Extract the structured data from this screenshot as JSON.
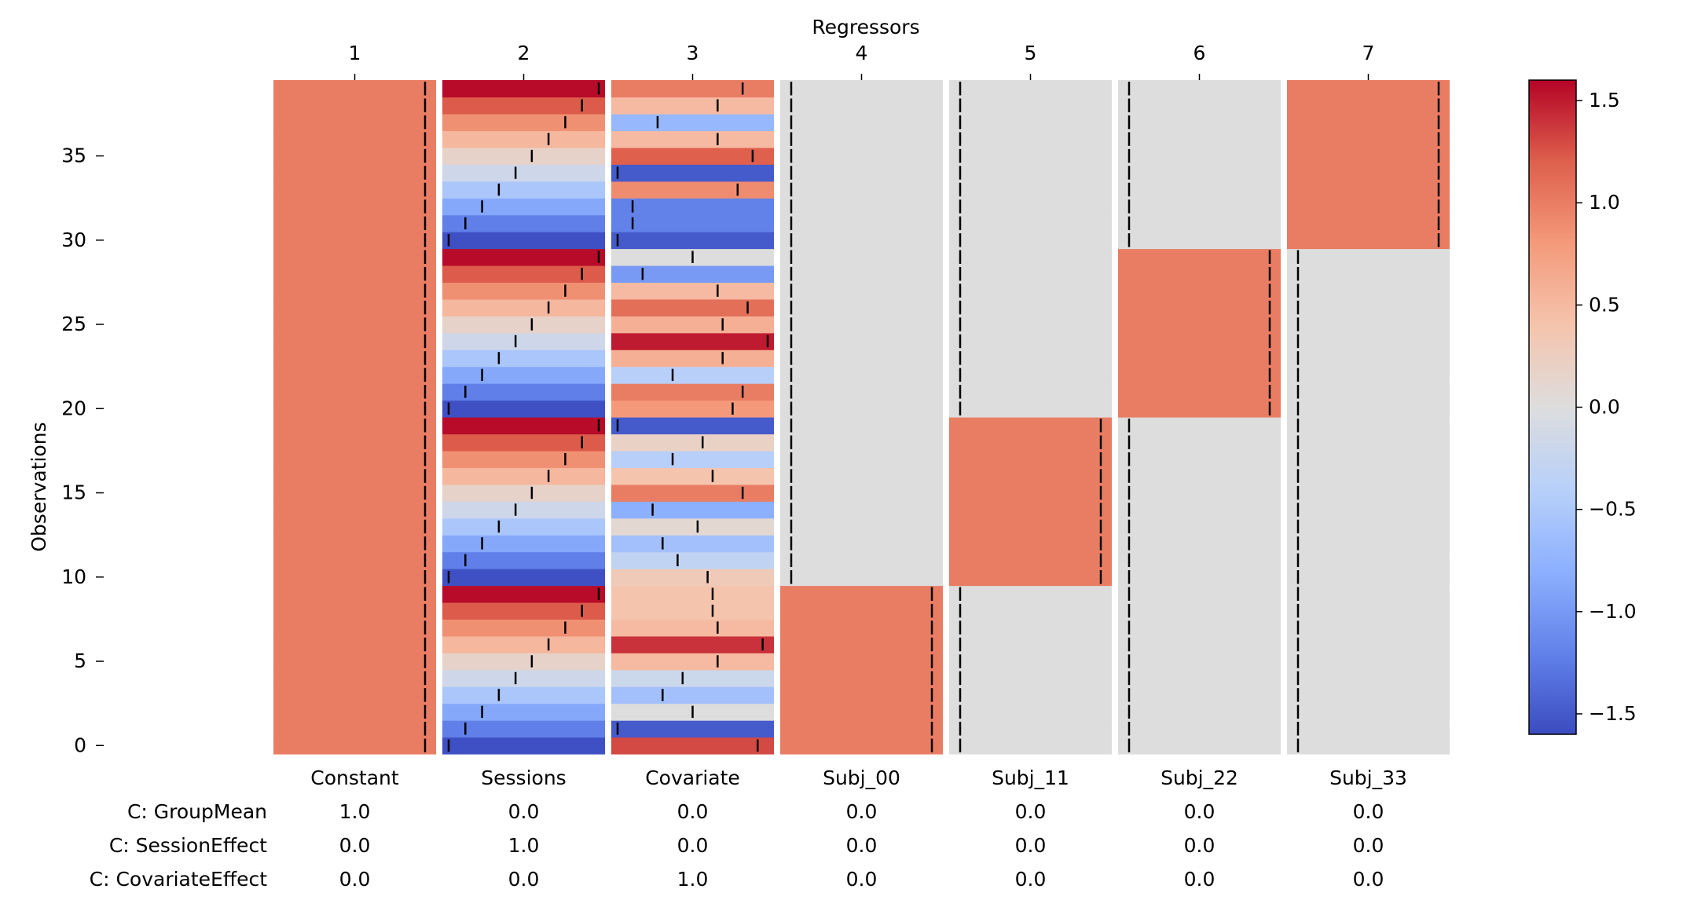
{
  "chart_data": {
    "type": "heatmap",
    "title": "Regressors",
    "ylabel": "Observations",
    "colormap": "coolwarm",
    "vmin": -1.6,
    "vmax": 1.6,
    "n_observations": 40,
    "regressor_numbers": [
      "1",
      "2",
      "3",
      "4",
      "5",
      "6",
      "7"
    ],
    "regressor_names": [
      "Constant",
      "Sessions",
      "Covariate",
      "Subj_00",
      "Subj_11",
      "Subj_22",
      "Subj_33"
    ],
    "y_ticks": [
      {
        "value": 0,
        "label": "0"
      },
      {
        "value": 5,
        "label": "5"
      },
      {
        "value": 10,
        "label": "10"
      },
      {
        "value": 15,
        "label": "15"
      },
      {
        "value": 20,
        "label": "20"
      },
      {
        "value": 25,
        "label": "25"
      },
      {
        "value": 30,
        "label": "30"
      },
      {
        "value": 35,
        "label": "35"
      }
    ],
    "colorbar_ticks": [
      {
        "value": 1.5,
        "label": "1.5"
      },
      {
        "value": 1.0,
        "label": "1.0"
      },
      {
        "value": 0.5,
        "label": "0.5"
      },
      {
        "value": 0.0,
        "label": "0.0"
      },
      {
        "value": -0.5,
        "label": "−0.5"
      },
      {
        "value": -1.0,
        "label": "−1.0"
      },
      {
        "value": -1.5,
        "label": "−1.5"
      }
    ],
    "columns": [
      {
        "name": "Constant",
        "values": [
          1,
          1,
          1,
          1,
          1,
          1,
          1,
          1,
          1,
          1,
          1,
          1,
          1,
          1,
          1,
          1,
          1,
          1,
          1,
          1,
          1,
          1,
          1,
          1,
          1,
          1,
          1,
          1,
          1,
          1,
          1,
          1,
          1,
          1,
          1,
          1,
          1,
          1,
          1,
          1
        ]
      },
      {
        "name": "Sessions",
        "values": [
          -1.57,
          -1.22,
          -0.87,
          -0.52,
          -0.17,
          0.17,
          0.52,
          0.87,
          1.22,
          1.57,
          -1.57,
          -1.22,
          -0.87,
          -0.52,
          -0.17,
          0.17,
          0.52,
          0.87,
          1.22,
          1.57,
          -1.57,
          -1.22,
          -0.87,
          -0.52,
          -0.17,
          0.17,
          0.52,
          0.87,
          1.22,
          1.57,
          -1.57,
          -1.22,
          -0.87,
          -0.52,
          -0.17,
          0.17,
          0.52,
          0.87,
          1.22,
          1.57
        ]
      },
      {
        "name": "Covariate",
        "values": [
          1.3,
          -1.5,
          0.0,
          -0.6,
          -0.2,
          0.5,
          1.4,
          0.5,
          0.4,
          0.4,
          0.3,
          -0.3,
          -0.6,
          0.1,
          -0.8,
          1.0,
          0.4,
          -0.4,
          0.2,
          -1.5,
          0.8,
          1.0,
          -0.4,
          0.6,
          1.5,
          0.6,
          1.1,
          0.5,
          -1.0,
          0.0,
          -1.5,
          -1.2,
          -1.2,
          0.9,
          -1.5,
          1.2,
          0.5,
          -0.7,
          0.5,
          1.0
        ]
      },
      {
        "name": "Subj_00",
        "values": [
          1,
          1,
          1,
          1,
          1,
          1,
          1,
          1,
          1,
          1,
          0,
          0,
          0,
          0,
          0,
          0,
          0,
          0,
          0,
          0,
          0,
          0,
          0,
          0,
          0,
          0,
          0,
          0,
          0,
          0,
          0,
          0,
          0,
          0,
          0,
          0,
          0,
          0,
          0,
          0
        ]
      },
      {
        "name": "Subj_11",
        "values": [
          0,
          0,
          0,
          0,
          0,
          0,
          0,
          0,
          0,
          0,
          1,
          1,
          1,
          1,
          1,
          1,
          1,
          1,
          1,
          1,
          0,
          0,
          0,
          0,
          0,
          0,
          0,
          0,
          0,
          0,
          0,
          0,
          0,
          0,
          0,
          0,
          0,
          0,
          0,
          0
        ]
      },
      {
        "name": "Subj_22",
        "values": [
          0,
          0,
          0,
          0,
          0,
          0,
          0,
          0,
          0,
          0,
          0,
          0,
          0,
          0,
          0,
          0,
          0,
          0,
          0,
          0,
          1,
          1,
          1,
          1,
          1,
          1,
          1,
          1,
          1,
          1,
          0,
          0,
          0,
          0,
          0,
          0,
          0,
          0,
          0,
          0
        ]
      },
      {
        "name": "Subj_33",
        "values": [
          0,
          0,
          0,
          0,
          0,
          0,
          0,
          0,
          0,
          0,
          0,
          0,
          0,
          0,
          0,
          0,
          0,
          0,
          0,
          0,
          0,
          0,
          0,
          0,
          0,
          0,
          0,
          0,
          0,
          0,
          1,
          1,
          1,
          1,
          1,
          1,
          1,
          1,
          1,
          1
        ]
      }
    ],
    "contrasts": [
      {
        "label": "C: GroupMean",
        "weights": [
          "1.0",
          "0.0",
          "0.0",
          "0.0",
          "0.0",
          "0.0",
          "0.0"
        ]
      },
      {
        "label": "C: SessionEffect",
        "weights": [
          "0.0",
          "1.0",
          "0.0",
          "0.0",
          "0.0",
          "0.0",
          "0.0"
        ]
      },
      {
        "label": "C: CovariateEffect",
        "weights": [
          "0.0",
          "0.0",
          "1.0",
          "0.0",
          "0.0",
          "0.0",
          "0.0"
        ]
      }
    ]
  }
}
